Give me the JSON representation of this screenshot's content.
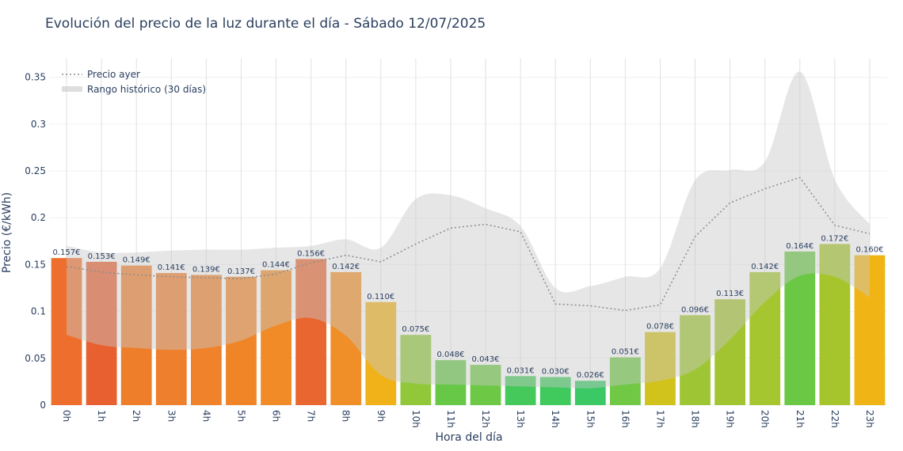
{
  "chart_data": {
    "type": "bar",
    "title": "Evolución del precio de la luz durante el día - Sábado 12/07/2025",
    "xlabel": "Hora del día",
    "ylabel": "Precio (€/kWh)",
    "ylim": [
      0,
      0.37
    ],
    "yticks": [
      "0",
      "0.05",
      "0.1",
      "0.15",
      "0.2",
      "0.25",
      "0.3",
      "0.35"
    ],
    "categories": [
      "0h",
      "1h",
      "2h",
      "3h",
      "4h",
      "5h",
      "6h",
      "7h",
      "8h",
      "9h",
      "10h",
      "11h",
      "12h",
      "13h",
      "14h",
      "15h",
      "16h",
      "17h",
      "18h",
      "19h",
      "20h",
      "21h",
      "22h",
      "23h"
    ],
    "series": [
      {
        "values": [
          0.157,
          0.153,
          0.149,
          0.141,
          0.139,
          0.137,
          0.144,
          0.156,
          0.142,
          0.11,
          0.075,
          0.048,
          0.043,
          0.031,
          0.03,
          0.026,
          0.051,
          0.078,
          0.096,
          0.113,
          0.142,
          0.164,
          0.172,
          0.16
        ],
        "labels": [
          "0.157€",
          "0.153€",
          "0.149€",
          "0.141€",
          "0.139€",
          "0.137€",
          "0.144€",
          "0.156€",
          "0.142€",
          "0.110€",
          "0.075€",
          "0.048€",
          "0.043€",
          "0.031€",
          "0.030€",
          "0.026€",
          "0.051€",
          "0.078€",
          "0.096€",
          "0.113€",
          "0.142€",
          "0.164€",
          "0.172€",
          "0.160€"
        ],
        "colors": [
          "#ee6f2d",
          "#e8602f",
          "#ee7e2a",
          "#ee7f2c",
          "#ef822b",
          "#f08528",
          "#f08b27",
          "#e96630",
          "#f08f27",
          "#f1b118",
          "#90c83a",
          "#67c747",
          "#6dc846",
          "#46c95b",
          "#40c95d",
          "#3ac965",
          "#70c844",
          "#d1c21c",
          "#9ec634",
          "#a3c431",
          "#a5c62e",
          "#6ac845",
          "#a6c52c",
          "#f0b515"
        ]
      },
      {
        "name": "Precio ayer",
        "values": [
          0.148,
          0.142,
          0.139,
          0.137,
          0.136,
          0.135,
          0.14,
          0.152,
          0.16,
          0.153,
          0.172,
          0.189,
          0.193,
          0.185,
          0.108,
          0.106,
          0.101,
          0.107,
          0.18,
          0.216,
          0.231,
          0.243,
          0.192,
          0.183
        ]
      },
      {
        "name": "Rango histórico (30 días)",
        "upper": [
          0.17,
          0.163,
          0.163,
          0.165,
          0.166,
          0.166,
          0.168,
          0.17,
          0.177,
          0.168,
          0.22,
          0.224,
          0.21,
          0.191,
          0.125,
          0.127,
          0.137,
          0.146,
          0.24,
          0.251,
          0.26,
          0.356,
          0.241,
          0.193
        ],
        "lower": [
          0.075,
          0.064,
          0.061,
          0.059,
          0.061,
          0.069,
          0.085,
          0.093,
          0.074,
          0.032,
          0.023,
          0.022,
          0.021,
          0.02,
          0.019,
          0.018,
          0.022,
          0.026,
          0.038,
          0.07,
          0.11,
          0.138,
          0.137,
          0.115
        ]
      }
    ],
    "legend": {
      "position": "top-left",
      "items": [
        "Precio ayer",
        "Rango histórico (30 días)"
      ]
    },
    "grid": true
  }
}
